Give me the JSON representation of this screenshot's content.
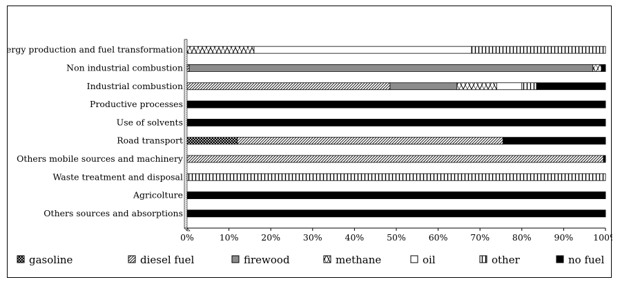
{
  "chart_data": {
    "type": "bar",
    "orientation": "horizontal",
    "stacked": "percent",
    "categories": [
      "Energy production and fuel transformation",
      "Non industrial combustion",
      "Industrial combustion",
      "Productive processes",
      "Use of solvents",
      "Road transport",
      "Others mobile sources and machinery",
      "Waste treatment and disposal",
      "Agricolture",
      "Others sources and absorptions"
    ],
    "series": [
      {
        "name": "gasoline",
        "pattern": "dots",
        "values": [
          0,
          0,
          0,
          0,
          0,
          12,
          0,
          0,
          0,
          0
        ]
      },
      {
        "name": "diesel fuel",
        "pattern": "diagonal",
        "values": [
          0,
          0.5,
          48.5,
          0,
          0,
          63.5,
          99.5,
          0,
          0,
          0
        ]
      },
      {
        "name": "firewood",
        "pattern": "gray",
        "values": [
          0,
          96.5,
          16,
          0,
          0,
          0,
          0,
          0,
          0,
          0
        ]
      },
      {
        "name": "methane",
        "pattern": "zigzag",
        "values": [
          16,
          2,
          9.5,
          0,
          0,
          0,
          0,
          0,
          0,
          0
        ]
      },
      {
        "name": "oil",
        "pattern": "white",
        "values": [
          52,
          0,
          6,
          0,
          0,
          0,
          0,
          0,
          0,
          0
        ]
      },
      {
        "name": "other",
        "pattern": "vertical",
        "values": [
          32,
          0,
          3.5,
          0,
          0,
          0,
          0,
          100,
          0,
          0
        ]
      },
      {
        "name": "no fuel",
        "pattern": "black",
        "values": [
          0,
          1,
          16.5,
          100,
          100,
          24.5,
          0.5,
          0,
          100,
          100
        ]
      }
    ],
    "x_ticks": [
      "0%",
      "10%",
      "20%",
      "30%",
      "40%",
      "50%",
      "60%",
      "70%",
      "80%",
      "90%",
      "100%"
    ],
    "xlim": [
      0,
      100
    ],
    "grid": false,
    "legend_position": "bottom",
    "colors": {
      "ink": "#000000",
      "fill_gray": "#8c8c8c",
      "background": "#ffffff"
    }
  }
}
